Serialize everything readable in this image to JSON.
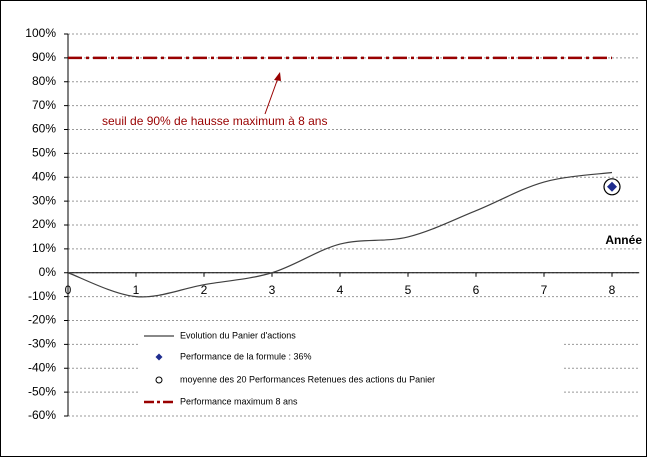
{
  "chart_data": {
    "type": "line",
    "x_label": "Année",
    "annotation": "seuil de 90% de hausse maximum à 8 ans",
    "xlim": [
      0,
      8.4
    ],
    "xticks": [
      0,
      1,
      2,
      3,
      4,
      5,
      6,
      7,
      8
    ],
    "ylim": [
      -60,
      100
    ],
    "yticks": [
      {
        "value": -60,
        "label": "-60%"
      },
      {
        "value": -50,
        "label": "-50%"
      },
      {
        "value": -40,
        "label": "-40%"
      },
      {
        "value": -30,
        "label": "-30%"
      },
      {
        "value": -20,
        "label": "-20%"
      },
      {
        "value": -10,
        "label": "-10%"
      },
      {
        "value": 0,
        "label": "0%"
      },
      {
        "value": 10,
        "label": "10%"
      },
      {
        "value": 20,
        "label": "20%"
      },
      {
        "value": 30,
        "label": "30%"
      },
      {
        "value": 40,
        "label": "40%"
      },
      {
        "value": 50,
        "label": "50%"
      },
      {
        "value": 60,
        "label": "60%"
      },
      {
        "value": 70,
        "label": "70%"
      },
      {
        "value": 80,
        "label": "80%"
      },
      {
        "value": 90,
        "label": "90%"
      },
      {
        "value": 100,
        "label": "100%"
      }
    ],
    "grid": true,
    "series": [
      {
        "name": "Evolution du Panier d'actions",
        "color": "#404040",
        "style": "smooth",
        "x": [
          0,
          1,
          2,
          3,
          4,
          5,
          6,
          7,
          8
        ],
        "values": [
          0,
          -10,
          -5,
          0,
          12,
          15,
          26,
          38,
          42
        ]
      },
      {
        "name": "Performance de la formule : 36%",
        "color": "#1f2d8f",
        "style": "diamond",
        "x": [
          8
        ],
        "values": [
          36
        ]
      },
      {
        "name": "moyenne des 20 Performances Retenues des actions du Panier",
        "color": "#000000",
        "style": "circle",
        "x": [
          8
        ],
        "values": [
          36
        ]
      },
      {
        "name": "Performance maximum 8 ans",
        "color": "#990000",
        "style": "dashdot",
        "x": [
          0,
          8
        ],
        "values": [
          90,
          90
        ]
      }
    ]
  }
}
